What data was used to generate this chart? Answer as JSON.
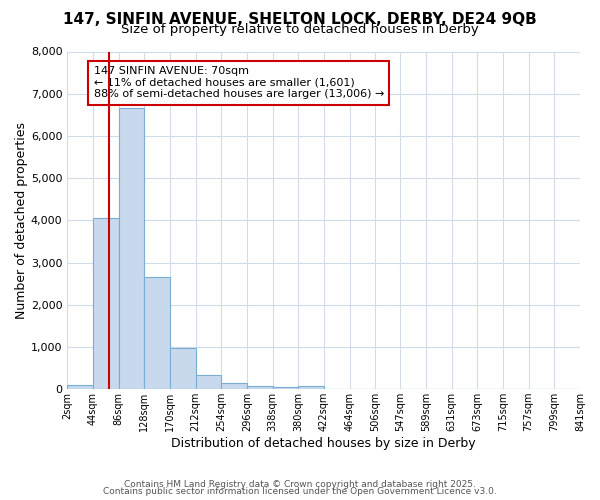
{
  "title1": "147, SINFIN AVENUE, SHELTON LOCK, DERBY, DE24 9QB",
  "title2": "Size of property relative to detached houses in Derby",
  "xlabel": "Distribution of detached houses by size in Derby",
  "ylabel": "Number of detached properties",
  "bar_color": "#c8d9ed",
  "bar_edge_color": "#7aadd4",
  "bin_edges": [
    2,
    44,
    86,
    128,
    170,
    212,
    254,
    296,
    338,
    380,
    422,
    464,
    506,
    547,
    589,
    631,
    673,
    715,
    757,
    799,
    841
  ],
  "bar_heights": [
    100,
    4050,
    6650,
    2650,
    980,
    340,
    140,
    70,
    50,
    70,
    0,
    0,
    0,
    0,
    0,
    0,
    0,
    0,
    0,
    0
  ],
  "property_size": 70,
  "red_line_color": "#cc0000",
  "annotation_text": "147 SINFIN AVENUE: 70sqm\n← 11% of detached houses are smaller (1,601)\n88% of semi-detached houses are larger (13,006) →",
  "annotation_box_color": "#ffffff",
  "annotation_box_edge": "#cc0000",
  "ylim": [
    0,
    8000
  ],
  "yticks": [
    0,
    1000,
    2000,
    3000,
    4000,
    5000,
    6000,
    7000,
    8000
  ],
  "bg_color": "#ffffff",
  "grid_color": "#d0dce8",
  "footer_text1": "Contains HM Land Registry data © Crown copyright and database right 2025.",
  "footer_text2": "Contains public sector information licensed under the Open Government Licence v3.0.",
  "title_fontsize": 11,
  "subtitle_fontsize": 9.5,
  "tick_labels": [
    "2sqm",
    "44sqm",
    "86sqm",
    "128sqm",
    "170sqm",
    "212sqm",
    "254sqm",
    "296sqm",
    "338sqm",
    "380sqm",
    "422sqm",
    "464sqm",
    "506sqm",
    "547sqm",
    "589sqm",
    "631sqm",
    "673sqm",
    "715sqm",
    "757sqm",
    "799sqm",
    "841sqm"
  ]
}
